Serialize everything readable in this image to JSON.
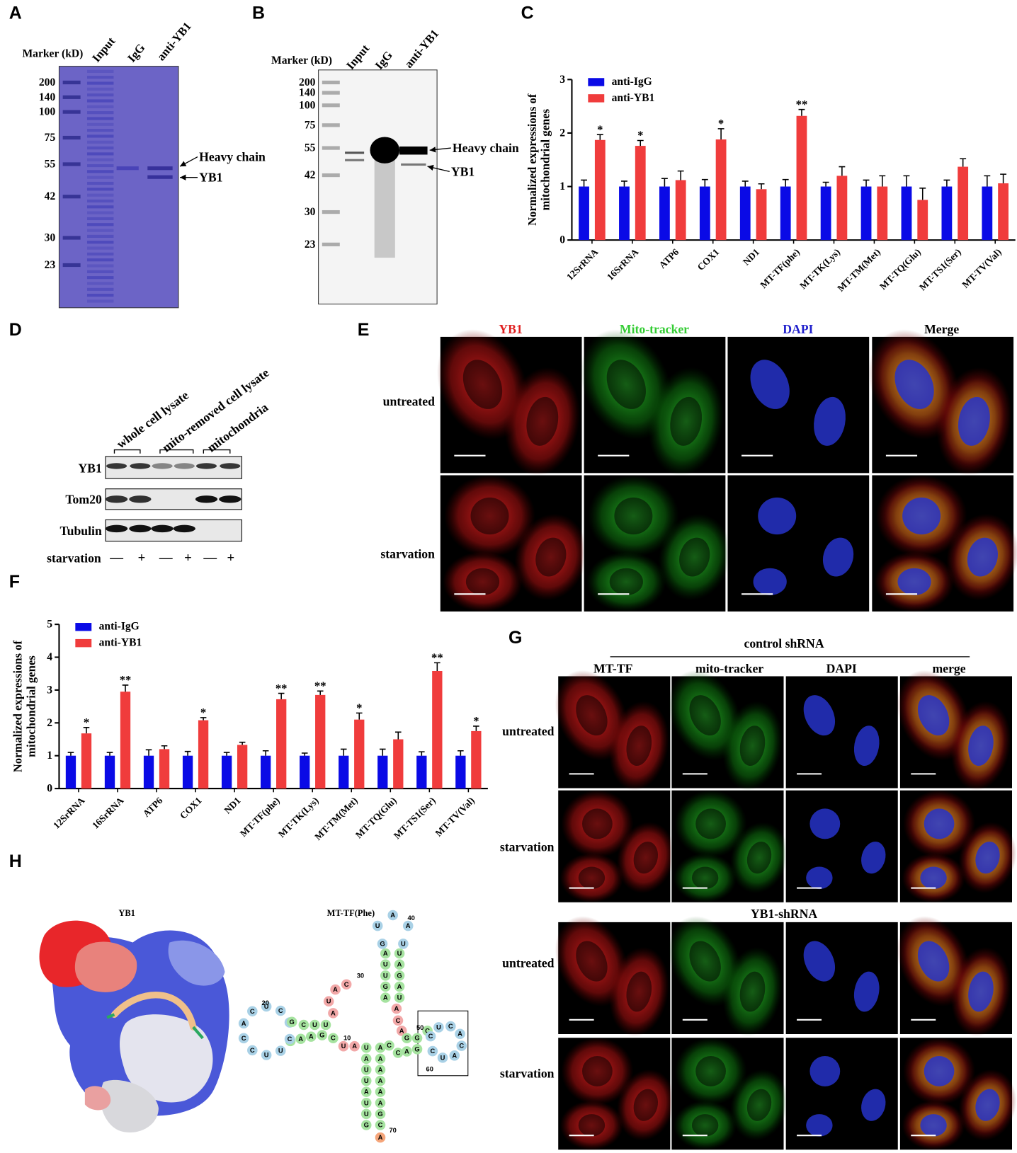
{
  "panel_labels": [
    "A",
    "B",
    "C",
    "D",
    "E",
    "F",
    "G",
    "H"
  ],
  "panel_a": {
    "marker_title": "Marker (kD)",
    "lanes": [
      "Input",
      "IgG",
      "anti-YB1"
    ],
    "markers": [
      "200",
      "140",
      "100",
      "75",
      "55",
      "42",
      "30",
      "23"
    ],
    "arrows": [
      "Heavy chain",
      "YB1"
    ]
  },
  "panel_b": {
    "marker_title": "Marker (kD)",
    "lanes": [
      "Input",
      "IgG",
      "anti-YB1"
    ],
    "markers": [
      "200",
      "140",
      "100",
      "75",
      "55",
      "42",
      "30",
      "23"
    ],
    "arrows": [
      "Heavy chain",
      "YB1"
    ]
  },
  "panel_d": {
    "lanes": [
      "whole cell lysate",
      "mito-removed cell lysate",
      "mitochondria"
    ],
    "rows": [
      "YB1",
      "Tom20",
      "Tubulin"
    ],
    "condition": "starvation",
    "signs": [
      "—",
      "+",
      "—",
      "+",
      "—",
      "+"
    ]
  },
  "panel_e": {
    "columns": [
      "YB1",
      "Mito-tracker",
      "DAPI",
      "Merge"
    ],
    "rows": [
      "untreated",
      "starvation"
    ]
  },
  "panel_g": {
    "groups": [
      "control shRNA",
      "YB1-shRNA"
    ],
    "columns": [
      "MT-TF",
      "mito-tracker",
      "DAPI",
      "merge"
    ],
    "rows": [
      "untreated",
      "starvation"
    ]
  },
  "panel_h": {
    "protein": "YB1",
    "rna_title": "MT-TF(Phe)",
    "sequence": "GUUAUUAUAUCGAAUCUUCCACUCAGCUUAUACAGUUAGUAAUUAGAUACAGGCCUCACAUCGACCAAAAAAGCA",
    "numbers": [
      "10",
      "20",
      "30",
      "40",
      "50",
      "60",
      "70"
    ]
  },
  "chart_data": [
    {
      "type": "bar",
      "ylabel": [
        "Normalized expressions of",
        "mitochondrial genes"
      ],
      "categories": [
        "12SrRNA",
        "16SrRNA",
        "ATP6",
        "COX1",
        "ND1",
        "MT-TF(phe)",
        "MT-TK(Lys)",
        "MT-TM(Met)",
        "MT-TQ(Glu)",
        "MT-TS1(Ser)",
        "MT-TV(Val)"
      ],
      "series": [
        {
          "name": "anti-IgG",
          "color": "#0a0ae6",
          "values": [
            1,
            1,
            1,
            1,
            1,
            1,
            1,
            1,
            1,
            1,
            1
          ],
          "errors": [
            0.12,
            0.1,
            0.15,
            0.13,
            0.1,
            0.13,
            0.08,
            0.12,
            0.2,
            0.12,
            0.2
          ]
        },
        {
          "name": "anti-YB1",
          "color": "#f03c3c",
          "values": [
            1.87,
            1.76,
            1.12,
            1.88,
            0.95,
            2.32,
            1.2,
            1.0,
            0.75,
            1.37,
            1.06
          ],
          "errors": [
            0.1,
            0.1,
            0.17,
            0.2,
            0.1,
            0.12,
            0.17,
            0.2,
            0.22,
            0.15,
            0.17
          ],
          "significance": [
            "*",
            "*",
            null,
            "*",
            null,
            "**",
            null,
            null,
            null,
            null,
            null
          ]
        }
      ],
      "ylim": [
        0,
        3
      ],
      "yticks": [
        0,
        1,
        2,
        3
      ],
      "legend": "upper left"
    },
    {
      "type": "bar",
      "ylabel": [
        "Normalized expressions of",
        "mitochondrial genes"
      ],
      "categories": [
        "12SrRNA",
        "16SrRNA",
        "ATP6",
        "COX1",
        "ND1",
        "MT-TF(phe)",
        "MT-TK(Lys)",
        "MT-TM(Met)",
        "MT-TQ(Glu)",
        "MT-TS1(Ser)",
        "MT-TV(Val)"
      ],
      "series": [
        {
          "name": "anti-IgG",
          "color": "#0a0ae6",
          "values": [
            1,
            1,
            1,
            1,
            1,
            1,
            1,
            1,
            1,
            1,
            1
          ],
          "errors": [
            0.1,
            0.1,
            0.18,
            0.13,
            0.1,
            0.15,
            0.08,
            0.2,
            0.2,
            0.12,
            0.15
          ]
        },
        {
          "name": "anti-YB1",
          "color": "#f03c3c",
          "values": [
            1.68,
            2.95,
            1.2,
            2.08,
            1.33,
            2.72,
            2.85,
            2.1,
            1.5,
            3.58,
            1.75
          ],
          "errors": [
            0.18,
            0.2,
            0.1,
            0.08,
            0.08,
            0.18,
            0.12,
            0.2,
            0.22,
            0.25,
            0.15
          ],
          "significance": [
            "*",
            "**",
            null,
            "*",
            null,
            "**",
            "**",
            "*",
            null,
            "**",
            "*"
          ]
        }
      ],
      "ylim": [
        0,
        5
      ],
      "yticks": [
        0,
        1,
        2,
        3,
        4,
        5
      ],
      "legend": "upper left"
    }
  ]
}
